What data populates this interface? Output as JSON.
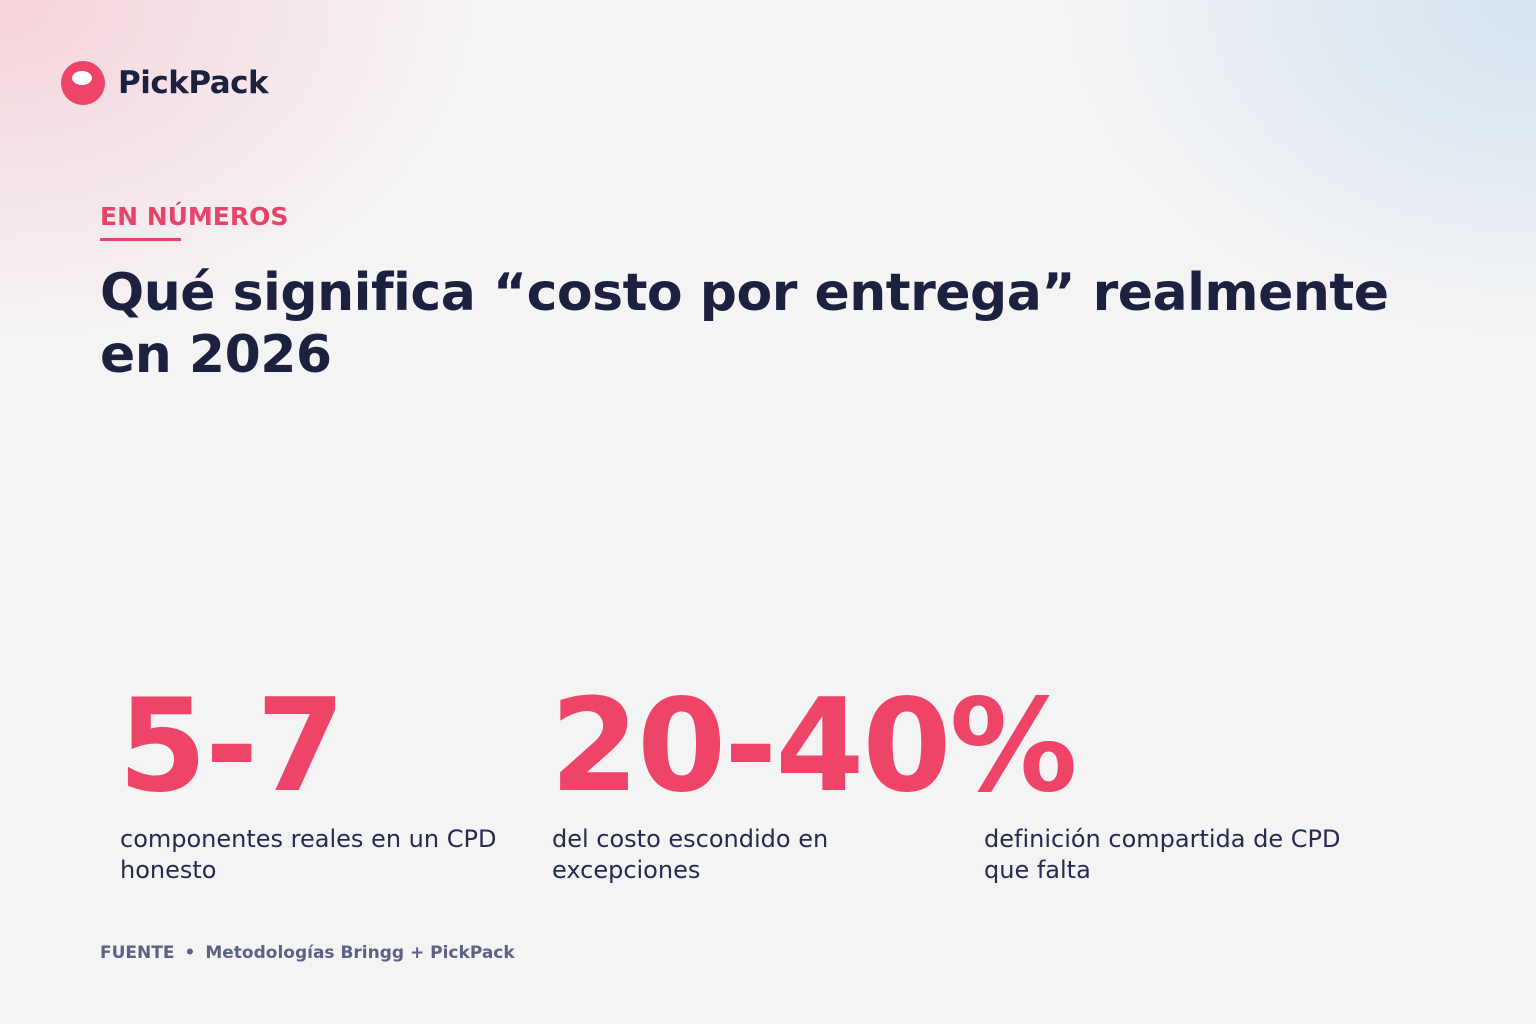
{
  "brand": "PickPack",
  "eyebrow": "EN NÚMEROS",
  "title": "Qué significa “costo por entrega” realmente en 2026",
  "stats": [
    {
      "value": "5-7",
      "label": "componentes reales en un CPD honesto"
    },
    {
      "value": "20-40%",
      "label": "del costo escondido en excepciones"
    },
    {
      "label": "definición compartida de CPD que falta"
    }
  ],
  "source": {
    "label": "FUENTE",
    "separator": "•",
    "text": "Metodologías Bringg + PickPack"
  }
}
